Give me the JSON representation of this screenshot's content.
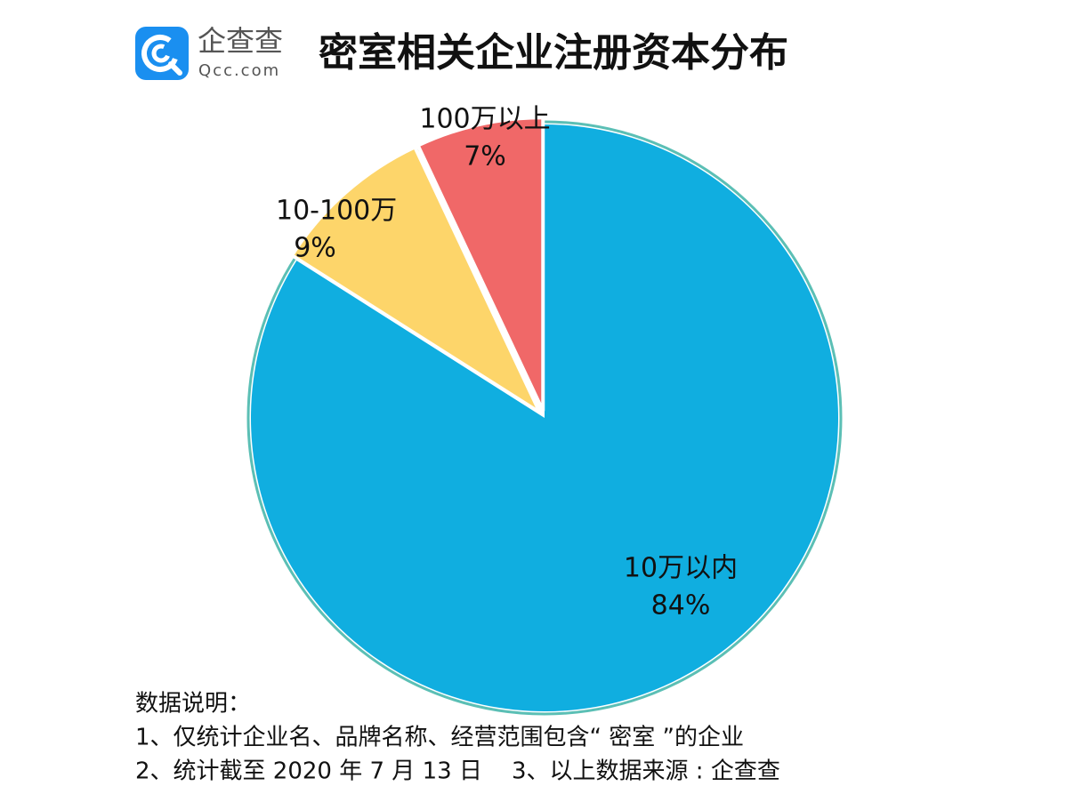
{
  "brand": {
    "name": "企查查",
    "url": "Qcc.com"
  },
  "chart_data": {
    "type": "pie",
    "title": "密室相关企业注册资本分布",
    "categories": [
      "10万以内",
      "10-100万",
      "100万以上"
    ],
    "values": [
      84,
      9,
      7
    ],
    "value_labels": [
      "84%",
      "9%",
      "7%"
    ],
    "colors": [
      "#10aee0",
      "#fdd56a",
      "#f06868"
    ]
  },
  "notes": [
    "数据说明：",
    "1、仅统计企业名、品牌名称、经营范围包含“ 密室 ”的企业",
    "2、统计截至 2020 年 7 月 13 日    3、以上数据来源 : 企查查"
  ]
}
